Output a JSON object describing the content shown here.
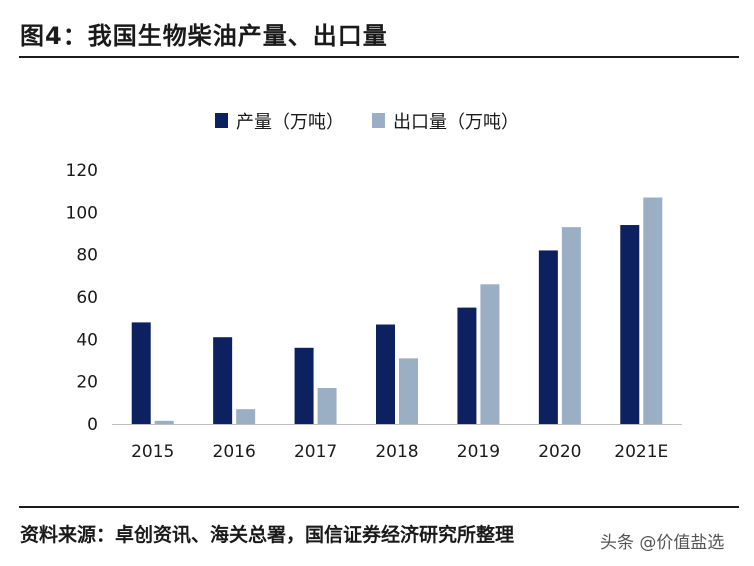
{
  "figure": {
    "title": "图4：我国生物柴油产量、出口量",
    "source": "资料来源：卓创资讯、海关总署，国信证券经济研究所整理",
    "watermark": "头条 @价值盐选"
  },
  "chart_data": {
    "type": "bar",
    "title": "",
    "xlabel": "",
    "ylabel": "",
    "categories": [
      "2015",
      "2016",
      "2017",
      "2018",
      "2019",
      "2020",
      "2021E"
    ],
    "series": [
      {
        "name": "产量（万吨）",
        "color": "#0d2160",
        "values": [
          48,
          41,
          36,
          47,
          55,
          82,
          94
        ]
      },
      {
        "name": "出口量（万吨）",
        "color": "#9aaec4",
        "values": [
          1.5,
          7,
          17,
          31,
          66,
          93,
          107
        ]
      }
    ],
    "ylim": [
      0,
      120
    ],
    "yticks": [
      0,
      20,
      40,
      60,
      80,
      100,
      120
    ],
    "grid": false,
    "legend_position": "top-center"
  }
}
